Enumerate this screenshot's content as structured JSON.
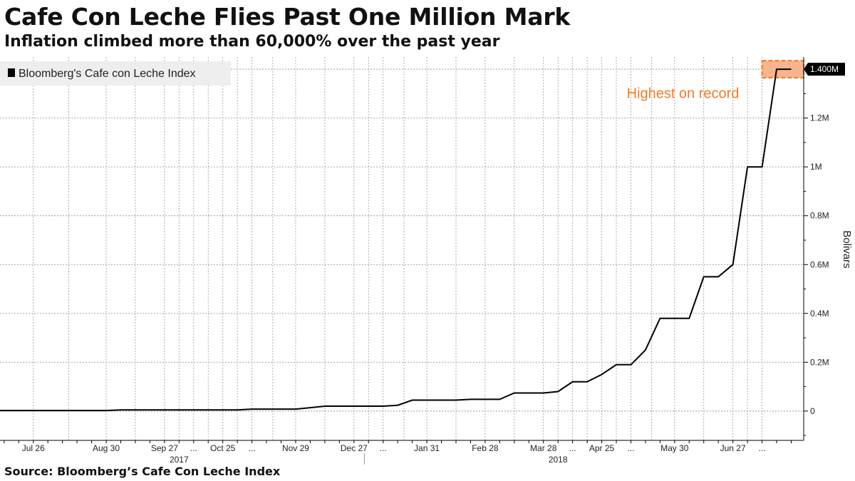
{
  "header": {
    "title": "Cafe Con Leche Flies Past One Million Mark",
    "subtitle": "Inflation climbed more than 60,000% over the past year"
  },
  "footer": {
    "source": "Source: Bloomberg’s Cafe Con Leche Index"
  },
  "colors": {
    "line": "#000000",
    "highlight_fill": "#f8b48c",
    "highlight_border": "#f07a2a",
    "annotation": "#f07a2a",
    "legend_bg": "#eeeeee",
    "grid": "#999999"
  },
  "chart_data": {
    "type": "line",
    "title": "Cafe Con Leche Flies Past One Million Mark",
    "subtitle": "Inflation climbed more than 60,000% over the past year",
    "xlabel": "",
    "ylabel": "Bolivars",
    "legend": {
      "placement": "top-left",
      "entries": [
        "Bloomberg's Cafe con Leche Index"
      ]
    },
    "grid": true,
    "x_range": [
      "2017-07-10",
      "2018-07-31"
    ],
    "ylim": [
      -120000,
      1450000
    ],
    "y_ticks": [
      0,
      200000,
      400000,
      600000,
      800000,
      1000000,
      1200000
    ],
    "y_tick_labels": [
      "0",
      "0.2M",
      "0.4M",
      "0.6M",
      "0.8M",
      "1M",
      "1.2M"
    ],
    "x_tick_labels": [
      {
        "date": "2017-07-26",
        "label": "Jul 26"
      },
      {
        "date": "2017-08-30",
        "label": "Aug 30"
      },
      {
        "date": "2017-09-27",
        "label": "Sep 27"
      },
      {
        "date": "2017-10-11",
        "label": "..."
      },
      {
        "date": "2017-10-25",
        "label": "Oct 25"
      },
      {
        "date": "2017-11-08",
        "label": "..."
      },
      {
        "date": "2017-11-29",
        "label": "Nov 29"
      },
      {
        "date": "2017-12-27",
        "label": "Dec 27"
      },
      {
        "date": "2018-01-10",
        "label": "..."
      },
      {
        "date": "2018-01-31",
        "label": "Jan 31"
      },
      {
        "date": "2018-02-28",
        "label": "Feb 28"
      },
      {
        "date": "2018-03-28",
        "label": "Mar 28"
      },
      {
        "date": "2018-04-11",
        "label": "..."
      },
      {
        "date": "2018-04-25",
        "label": "Apr 25"
      },
      {
        "date": "2018-05-09",
        "label": "..."
      },
      {
        "date": "2018-05-30",
        "label": "May 30"
      },
      {
        "date": "2018-06-27",
        "label": "Jun 27"
      },
      {
        "date": "2018-07-11",
        "label": "..."
      }
    ],
    "year_labels": [
      {
        "date": "2017-10-04",
        "label": "2017"
      },
      {
        "date": "2018-04-04",
        "label": "2018"
      }
    ],
    "year_divider": "2018-01-01",
    "last_value_label": "1.400M",
    "annotation": {
      "text": "Highest on record",
      "date": "2018-06-03",
      "value": 1300000
    },
    "highlight": {
      "x": [
        "2018-07-11",
        "2018-08-01"
      ],
      "y": [
        1365000,
        1435000
      ]
    },
    "series": [
      {
        "name": "Bloomberg's Cafe con Leche Index",
        "points": [
          [
            "2017-07-10",
            2300
          ],
          [
            "2017-07-26",
            2300
          ],
          [
            "2017-08-02",
            2300
          ],
          [
            "2017-08-09",
            2300
          ],
          [
            "2017-08-16",
            2300
          ],
          [
            "2017-08-23",
            2300
          ],
          [
            "2017-08-30",
            2300
          ],
          [
            "2017-09-06",
            5000
          ],
          [
            "2017-09-13",
            5000
          ],
          [
            "2017-09-20",
            5000
          ],
          [
            "2017-09-27",
            5000
          ],
          [
            "2017-10-04",
            5000
          ],
          [
            "2017-10-11",
            5000
          ],
          [
            "2017-10-18",
            5000
          ],
          [
            "2017-10-25",
            5000
          ],
          [
            "2017-11-01",
            5000
          ],
          [
            "2017-11-08",
            8000
          ],
          [
            "2017-11-15",
            8000
          ],
          [
            "2017-11-22",
            8000
          ],
          [
            "2017-11-29",
            8000
          ],
          [
            "2017-12-06",
            14000
          ],
          [
            "2017-12-13",
            20000
          ],
          [
            "2017-12-20",
            20000
          ],
          [
            "2017-12-27",
            20000
          ],
          [
            "2018-01-03",
            20000
          ],
          [
            "2018-01-10",
            20000
          ],
          [
            "2018-01-17",
            24000
          ],
          [
            "2018-01-24",
            45000
          ],
          [
            "2018-01-31",
            45000
          ],
          [
            "2018-02-07",
            45000
          ],
          [
            "2018-02-14",
            45000
          ],
          [
            "2018-02-21",
            48000
          ],
          [
            "2018-02-28",
            48000
          ],
          [
            "2018-03-07",
            48000
          ],
          [
            "2018-03-14",
            74000
          ],
          [
            "2018-03-21",
            74000
          ],
          [
            "2018-03-28",
            74000
          ],
          [
            "2018-04-04",
            80000
          ],
          [
            "2018-04-11",
            120000
          ],
          [
            "2018-04-18",
            120000
          ],
          [
            "2018-04-25",
            150000
          ],
          [
            "2018-05-02",
            190000
          ],
          [
            "2018-05-09",
            190000
          ],
          [
            "2018-05-16",
            250000
          ],
          [
            "2018-05-23",
            380000
          ],
          [
            "2018-05-30",
            380000
          ],
          [
            "2018-06-06",
            380000
          ],
          [
            "2018-06-13",
            550000
          ],
          [
            "2018-06-20",
            550000
          ],
          [
            "2018-06-27",
            600000
          ],
          [
            "2018-07-04",
            1000000
          ],
          [
            "2018-07-11",
            1000000
          ],
          [
            "2018-07-18",
            1400000
          ],
          [
            "2018-07-25",
            1400000
          ]
        ]
      }
    ]
  }
}
